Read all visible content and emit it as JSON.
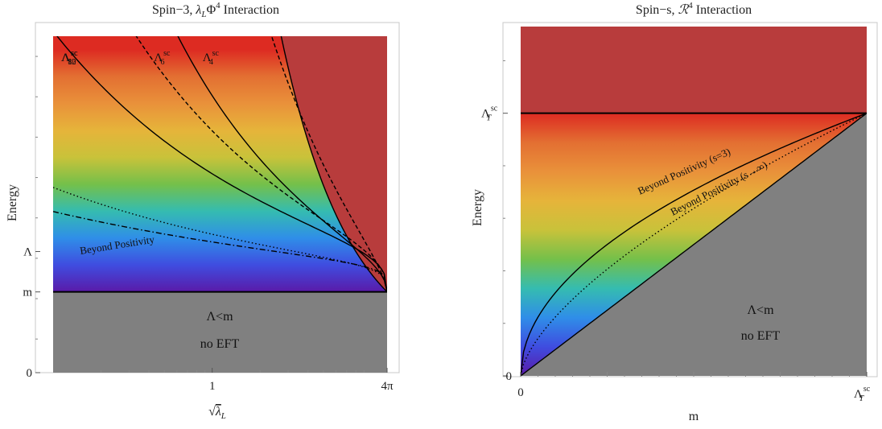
{
  "chart_data": [
    {
      "id": "left",
      "type": "area",
      "title": {
        "main": "Spin−3, ",
        "sym": "λ",
        "sub": "L",
        "mid": "Φ",
        "sup": "4",
        "tail": " Interaction"
      },
      "ylabel": "Energy",
      "xlabel": {
        "prefix": "√",
        "sym": "λ",
        "sub": "L"
      },
      "x_scale": "log",
      "xlim": [
        0.1,
        12.566
      ],
      "ylim": [
        0,
        10
      ],
      "x_ticks": [
        {
          "value": 1,
          "label": "1"
        },
        {
          "value": 12.566,
          "label": "4π"
        }
      ],
      "y_ticks": [
        {
          "value": 0,
          "label": "0"
        },
        {
          "value": 2.4,
          "label": "m"
        },
        {
          "value": 3.6,
          "label": "Λ"
        }
      ],
      "m": 2.4,
      "x_end": 12.566,
      "curves": [
        {
          "name": "Λ_4^sc",
          "base": "Λ",
          "sub": "4",
          "sup": "sc",
          "coef": 26.3,
          "exp": 1.0,
          "style": "solid",
          "label_at_x": 0.85
        },
        {
          "name": "Λ_6^sc",
          "base": "Λ",
          "sub": "6",
          "sup": "sc",
          "coef": 15.5,
          "exp": 0.667,
          "style": "dashed",
          "label_at_x": 0.42
        },
        {
          "name": "Λ_8^sc",
          "base": "Λ",
          "sub": "8",
          "sup": "sc",
          "coef": 6.08,
          "exp": 0.5,
          "style": "solid",
          "label_at_x": 0.11
        },
        {
          "name": "Λ_10^sc",
          "base": "Λ",
          "sub": "10",
          "sup": "sc",
          "coef": 4.95,
          "exp": 0.4,
          "style": "dashed",
          "label_at_x": 0.11
        },
        {
          "name": "Λ_12^sc",
          "base": "Λ",
          "sub": "12",
          "sup": "sc",
          "coef": 3.61,
          "exp": 0.333,
          "style": "solid",
          "label_at_x": 0.11
        },
        {
          "name": "beyond-positivity-dotted",
          "coef": 1.75,
          "exp": 0.25,
          "style": "dotted"
        },
        {
          "name": "beyond-positivity-dashdot",
          "coef": 1.51,
          "exp": 0.2,
          "style": "dashdot"
        }
      ],
      "annotations": {
        "beyond": "Beyond Positivity",
        "lower_top": "Λ<m",
        "lower_bottom": "no EFT"
      },
      "colors": {
        "top_region": "#b83c3c",
        "bottom_region": "#808080",
        "scale": [
          "#5a1aa8",
          "#3f4de0",
          "#2f8ee8",
          "#35bcb0",
          "#74c04a",
          "#c9c23a",
          "#e6b43a",
          "#e9913a",
          "#e36f32",
          "#dd2b22"
        ]
      }
    },
    {
      "id": "right",
      "type": "area",
      "title": {
        "main": "Spin−s, ",
        "sym": "ℛ",
        "sup": "4",
        "tail": " Interaction"
      },
      "ylabel": "Energy",
      "xlabel": "m",
      "xlim": [
        0,
        1
      ],
      "ylim": [
        0,
        1.33
      ],
      "x_ticks": [
        {
          "value": 0,
          "label": "0"
        },
        {
          "value": 1,
          "label": "Λ_T^sc"
        }
      ],
      "y_ticks": [
        {
          "value": 0,
          "label": "0"
        },
        {
          "value": 1,
          "label": "Λ_T^sc"
        }
      ],
      "tick_symbol": {
        "base": "Λ",
        "sub": "T",
        "sup": "sc"
      },
      "curves": [
        {
          "name": "Beyond Positivity (s=3)",
          "exp": 0.5,
          "style": "solid"
        },
        {
          "name": "Beyond Positivity (s→∞)",
          "exp": 0.65,
          "style": "dotted"
        },
        {
          "name": "diagonal",
          "exp": 1.0,
          "style": "solid"
        }
      ],
      "annotations": {
        "s3": "Beyond Positivity (s=3)",
        "sinf": "Beyond Positivity (s→∞)",
        "lower_top": "Λ<m",
        "lower_bottom": "no EFT"
      },
      "colors": {
        "top_region": "#b83c3c",
        "bottom_region": "#808080",
        "scale": [
          "#5a1aa8",
          "#3f4de0",
          "#2f8ee8",
          "#35bcb0",
          "#74c04a",
          "#c9c23a",
          "#e6b43a",
          "#e9913a",
          "#e36f32",
          "#dd2b22"
        ]
      }
    }
  ]
}
